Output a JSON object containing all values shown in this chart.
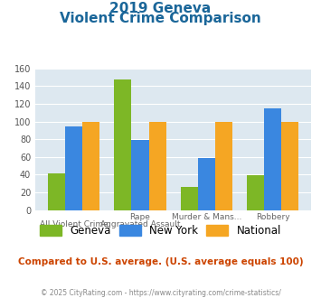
{
  "title_line1": "2019 Geneva",
  "title_line2": "Violent Crime Comparison",
  "geneva": [
    42,
    148,
    26,
    39
  ],
  "newyork": [
    95,
    79,
    59,
    115
  ],
  "national": [
    100,
    100,
    100,
    100
  ],
  "geneva_color": "#7db726",
  "newyork_color": "#3a87e0",
  "national_color": "#f5a623",
  "ylim": [
    0,
    160
  ],
  "yticks": [
    0,
    20,
    40,
    60,
    80,
    100,
    120,
    140,
    160
  ],
  "bg_color": "#dde8f0",
  "fig_bg": "#ffffff",
  "title_color": "#1a6699",
  "note_text": "Compared to U.S. average. (U.S. average equals 100)",
  "note_color": "#cc4400",
  "footer_text": "© 2025 CityRating.com - https://www.cityrating.com/crime-statistics/",
  "footer_color": "#888888",
  "legend_labels": [
    "Geneva",
    "New York",
    "National"
  ],
  "top_labels": [
    "",
    "Rape",
    "Murder & Mans...",
    "Robbery"
  ],
  "bot_labels": [
    "All Violent Crime",
    "Aggravated Assault",
    "",
    ""
  ]
}
